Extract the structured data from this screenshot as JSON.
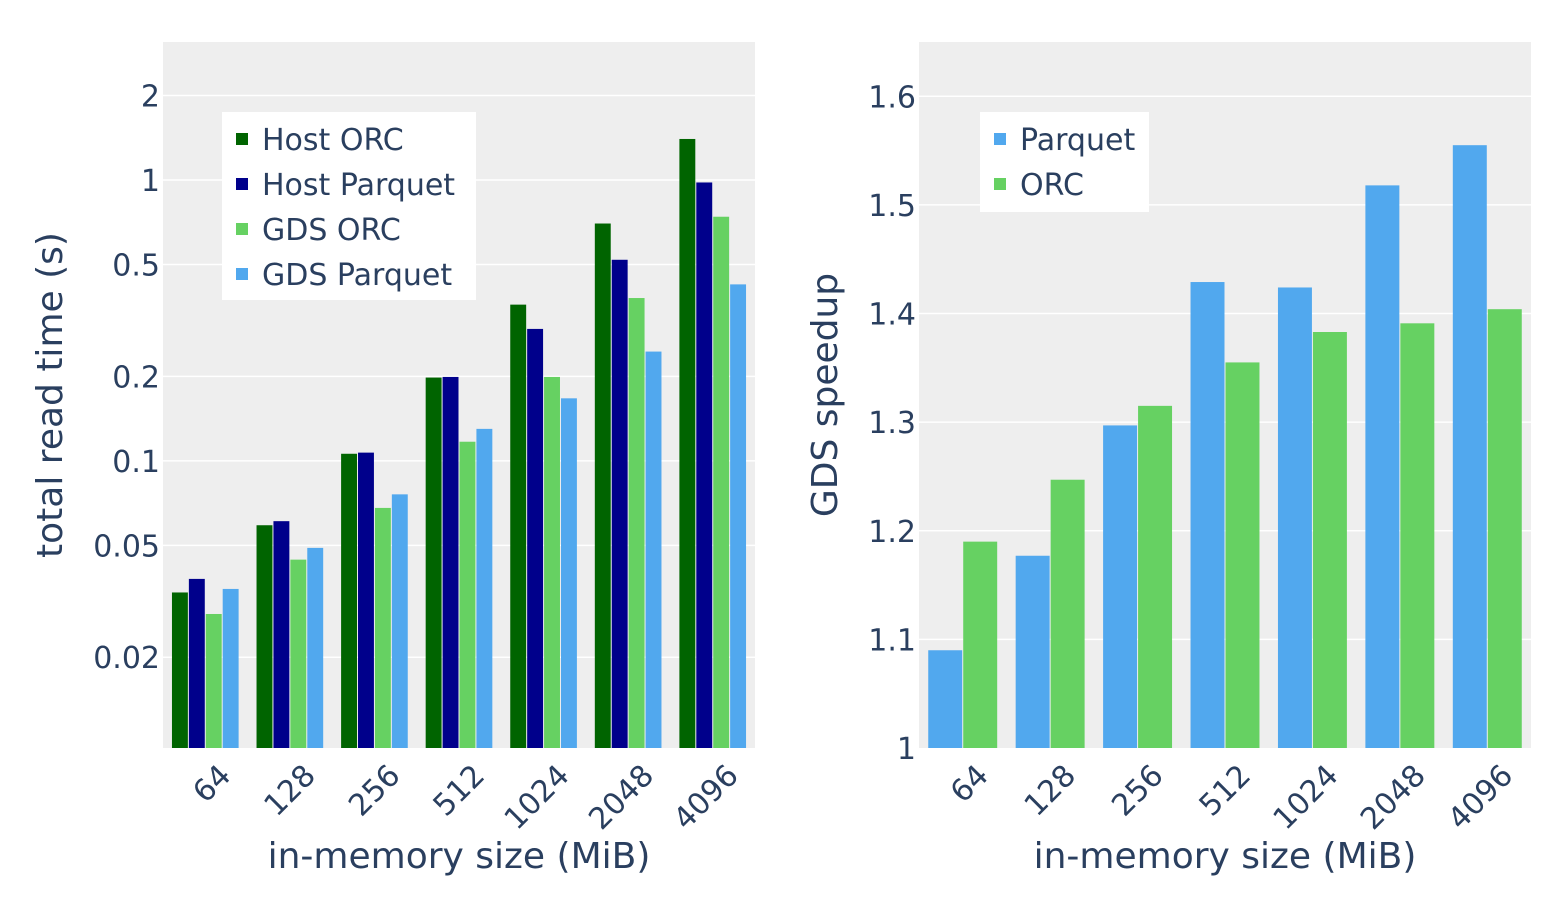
{
  "chart_data": [
    {
      "type": "bar",
      "x_scale": "category",
      "y_scale": "log",
      "categories": [
        "64",
        "128",
        "256",
        "512",
        "1024",
        "2048",
        "4096"
      ],
      "xlabel": "in-memory size (MiB)",
      "ylabel": "total read time (s)",
      "yticks": [
        {
          "value": 0.02,
          "label": "0.02"
        },
        {
          "value": 0.05,
          "label": "0.05"
        },
        {
          "value": 0.1,
          "label": "0.1"
        },
        {
          "value": 0.2,
          "label": "0.2"
        },
        {
          "value": 0.5,
          "label": "0.5"
        },
        {
          "value": 1,
          "label": "1"
        },
        {
          "value": 2,
          "label": "2"
        }
      ],
      "ylim": [
        0.0095,
        3.1
      ],
      "legend_position": "top-left",
      "grid": true,
      "series": [
        {
          "name": "Host ORC",
          "color": "#006400",
          "values": [
            0.034,
            0.059,
            0.106,
            0.198,
            0.36,
            0.7,
            1.4
          ]
        },
        {
          "name": "Host Parquet",
          "color": "#00008b",
          "values": [
            0.038,
            0.061,
            0.107,
            0.199,
            0.295,
            0.52,
            0.98
          ]
        },
        {
          "name": "GDS ORC",
          "color": "#66d162",
          "values": [
            0.0285,
            0.0445,
            0.068,
            0.117,
            0.199,
            0.38,
            0.74
          ]
        },
        {
          "name": "GDS Parquet",
          "color": "#51a8ee",
          "values": [
            0.035,
            0.049,
            0.076,
            0.13,
            0.167,
            0.245,
            0.425
          ]
        }
      ]
    },
    {
      "type": "bar",
      "x_scale": "category",
      "y_scale": "linear",
      "categories": [
        "64",
        "128",
        "256",
        "512",
        "1024",
        "2048",
        "4096"
      ],
      "xlabel": "in-memory size (MiB)",
      "ylabel": "GDS speedup",
      "yticks": [
        {
          "value": 1.0,
          "label": "1"
        },
        {
          "value": 1.1,
          "label": "1.1"
        },
        {
          "value": 1.2,
          "label": "1.2"
        },
        {
          "value": 1.3,
          "label": "1.3"
        },
        {
          "value": 1.4,
          "label": "1.4"
        },
        {
          "value": 1.5,
          "label": "1.5"
        },
        {
          "value": 1.6,
          "label": "1.6"
        }
      ],
      "ylim": [
        1.0,
        1.65
      ],
      "legend_position": "top-left",
      "grid": true,
      "series": [
        {
          "name": "Parquet",
          "color": "#51a8ee",
          "values": [
            1.09,
            1.177,
            1.297,
            1.429,
            1.424,
            1.518,
            1.555
          ]
        },
        {
          "name": "ORC",
          "color": "#66d162",
          "values": [
            1.19,
            1.247,
            1.315,
            1.355,
            1.383,
            1.391,
            1.404
          ]
        }
      ]
    }
  ]
}
